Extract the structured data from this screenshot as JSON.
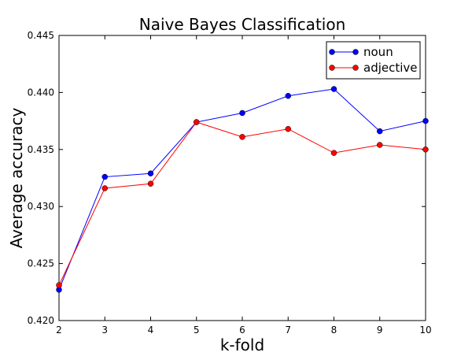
{
  "chart_data": {
    "type": "line",
    "title": "Naive Bayes Classification",
    "xlabel": "k-fold",
    "ylabel": "Average accuracy",
    "x": [
      2,
      3,
      4,
      5,
      6,
      7,
      8,
      9,
      10
    ],
    "xlim": [
      2,
      10
    ],
    "ylim": [
      0.42,
      0.445
    ],
    "xticks": [
      "2",
      "3",
      "4",
      "5",
      "6",
      "7",
      "8",
      "9",
      "10"
    ],
    "yticks": [
      "0.420",
      "0.425",
      "0.430",
      "0.435",
      "0.440",
      "0.445"
    ],
    "ytick_values": [
      0.42,
      0.425,
      0.43,
      0.435,
      0.44,
      0.445
    ],
    "grid": false,
    "legend_position": "top-right",
    "series": [
      {
        "name": "noun",
        "color": "#0000ff",
        "values": [
          0.4227,
          0.4326,
          0.4329,
          0.4374,
          0.4382,
          0.4397,
          0.4403,
          0.4366,
          0.4375
        ]
      },
      {
        "name": "adjective",
        "color": "#ff0000",
        "values": [
          0.4231,
          0.4316,
          0.432,
          0.4374,
          0.4361,
          0.4368,
          0.4347,
          0.4354,
          0.435
        ]
      }
    ]
  }
}
